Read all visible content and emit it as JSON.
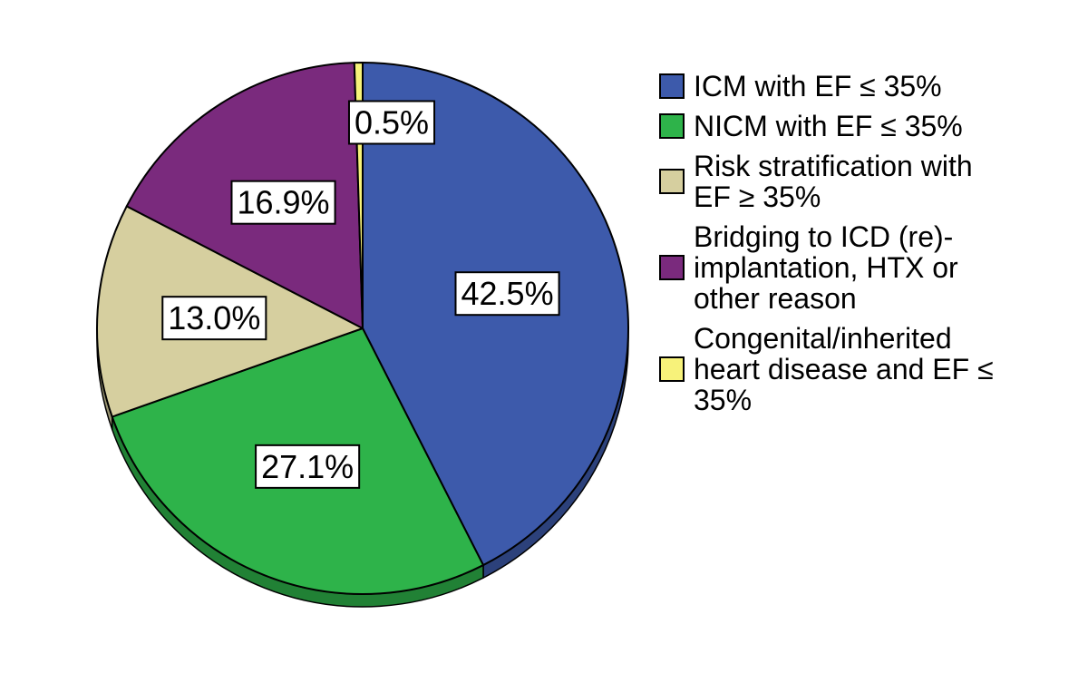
{
  "chart_data": {
    "type": "pie",
    "slices": [
      {
        "label": "ICM with EF ≤ 35%",
        "value": 42.5,
        "data_label": "42.5%",
        "color": "#3d5aab"
      },
      {
        "label": "NICM with EF ≤ 35%",
        "value": 27.1,
        "data_label": "27.1%",
        "color": "#2eb34a"
      },
      {
        "label": "Risk stratification with\nEF ≥ 35%",
        "value": 13.0,
        "data_label": "13.0%",
        "color": "#d6cf9f"
      },
      {
        "label": "Bridging to ICD (re)-\nimplantation, HTX or\nother reason",
        "value": 16.9,
        "data_label": "16.9%",
        "color": "#7a2a7d"
      },
      {
        "label": "Congenital/inherited\nheart disease and EF ≤\n35%",
        "value": 0.5,
        "data_label": "0.5%",
        "color": "#f7f27a"
      }
    ],
    "start_angle_deg": 0,
    "direction": "clockwise",
    "legend_position": "right"
  }
}
